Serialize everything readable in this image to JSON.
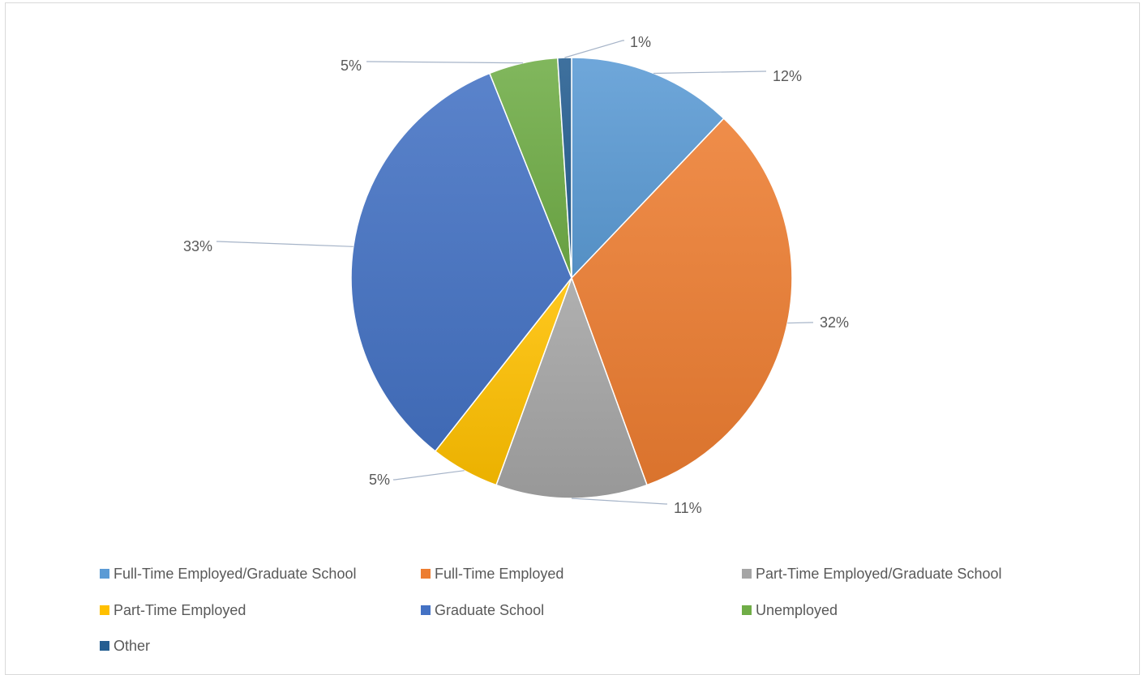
{
  "chart_data": {
    "type": "pie",
    "title": "",
    "legend_position": "bottom",
    "slices": [
      {
        "label": "Full-Time Employed/Graduate School",
        "value": 12,
        "display": "12%",
        "color": "#5b9bd5"
      },
      {
        "label": "Full-Time Employed",
        "value": 32,
        "display": "32%",
        "color": "#ed7d31"
      },
      {
        "label": "Part-Time Employed/Graduate School",
        "value": 11,
        "display": "11%",
        "color": "#a5a5a5"
      },
      {
        "label": "Part-Time Employed",
        "value": 5,
        "display": "5%",
        "color": "#ffc000"
      },
      {
        "label": "Graduate School",
        "value": 33,
        "display": "33%",
        "color": "#4472c4"
      },
      {
        "label": "Unemployed",
        "value": 5,
        "display": "5%",
        "color": "#70ad47"
      },
      {
        "label": "Other",
        "value": 1,
        "display": "1%",
        "color": "#255e91"
      }
    ]
  }
}
